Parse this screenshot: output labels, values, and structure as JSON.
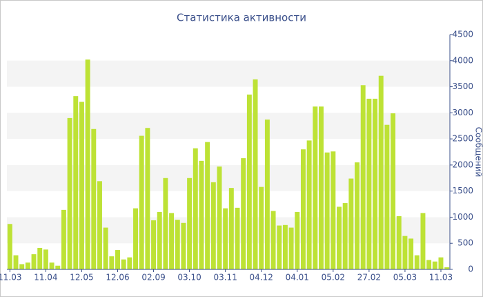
{
  "chart_data": {
    "type": "bar",
    "title": "Статистика активности",
    "y_label": "Сообщений",
    "categories": [
      "11.03",
      null,
      null,
      null,
      null,
      null,
      "11.04",
      null,
      null,
      null,
      null,
      null,
      "12.05",
      null,
      null,
      null,
      null,
      null,
      "12.06",
      null,
      null,
      null,
      null,
      null,
      "02.09",
      null,
      null,
      null,
      null,
      null,
      "03.10",
      null,
      null,
      null,
      null,
      null,
      "03.11",
      null,
      null,
      null,
      null,
      null,
      "04.12",
      null,
      null,
      null,
      null,
      null,
      "04.01",
      null,
      null,
      null,
      null,
      null,
      "05.02",
      null,
      null,
      null,
      null,
      null,
      "27.02",
      null,
      null,
      null,
      null,
      null,
      "05.03",
      null,
      null,
      null,
      null,
      null,
      "11.03",
      null
    ],
    "values": [
      870,
      270,
      100,
      130,
      290,
      410,
      380,
      130,
      70,
      1140,
      2900,
      3320,
      3210,
      4020,
      2690,
      1690,
      800,
      250,
      370,
      190,
      230,
      1170,
      2560,
      2710,
      940,
      1100,
      1750,
      1080,
      950,
      890,
      1750,
      2320,
      2080,
      2440,
      1670,
      1970,
      1170,
      1560,
      1180,
      2130,
      3350,
      3640,
      1580,
      2870,
      1120,
      840,
      850,
      800,
      1100,
      2300,
      2470,
      3120,
      3120,
      2240,
      2260,
      1200,
      1270,
      1740,
      2050,
      3530,
      3270,
      3270,
      3710,
      2770,
      2990,
      1020,
      640,
      590,
      270,
      1080,
      180,
      150,
      230,
      40
    ],
    "color": "#bde235",
    "ylim": [
      0,
      4500
    ],
    "yticks": [
      0,
      500,
      1000,
      1500,
      2000,
      2500,
      3000,
      3500,
      4000,
      4500
    ],
    "grid": true,
    "y_axis_side": "right"
  }
}
